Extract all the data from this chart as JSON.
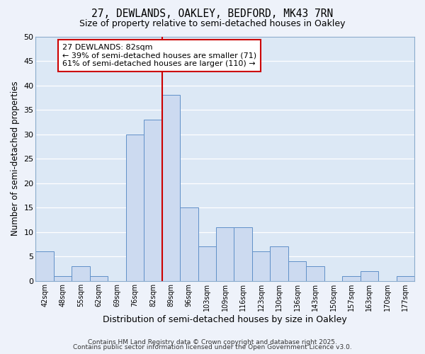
{
  "title_line1": "27, DEWLANDS, OAKLEY, BEDFORD, MK43 7RN",
  "title_line2": "Size of property relative to semi-detached houses in Oakley",
  "xlabel": "Distribution of semi-detached houses by size in Oakley",
  "ylabel": "Number of semi-detached properties",
  "bin_labels": [
    "42sqm",
    "48sqm",
    "55sqm",
    "62sqm",
    "69sqm",
    "76sqm",
    "82sqm",
    "89sqm",
    "96sqm",
    "103sqm",
    "109sqm",
    "116sqm",
    "123sqm",
    "130sqm",
    "136sqm",
    "143sqm",
    "150sqm",
    "157sqm",
    "163sqm",
    "170sqm",
    "177sqm"
  ],
  "bar_values": [
    6,
    1,
    3,
    1,
    0,
    30,
    33,
    38,
    15,
    7,
    11,
    11,
    6,
    7,
    4,
    3,
    0,
    1,
    2,
    0,
    1
  ],
  "bar_color": "#ccdaf0",
  "bar_edge_color": "#6090c8",
  "vline_color": "#cc0000",
  "annotation_box_text": "27 DEWLANDS: 82sqm\n← 39% of semi-detached houses are smaller (71)\n61% of semi-detached houses are larger (110) →",
  "box_edge_color": "#cc0000",
  "ylim": [
    0,
    50
  ],
  "yticks": [
    0,
    5,
    10,
    15,
    20,
    25,
    30,
    35,
    40,
    45,
    50
  ],
  "footer_line1": "Contains HM Land Registry data © Crown copyright and database right 2025.",
  "footer_line2": "Contains public sector information licensed under the Open Government Licence v3.0.",
  "background_color": "#eef2fa",
  "plot_bg_color": "#dce8f5",
  "grid_color": "#ffffff"
}
